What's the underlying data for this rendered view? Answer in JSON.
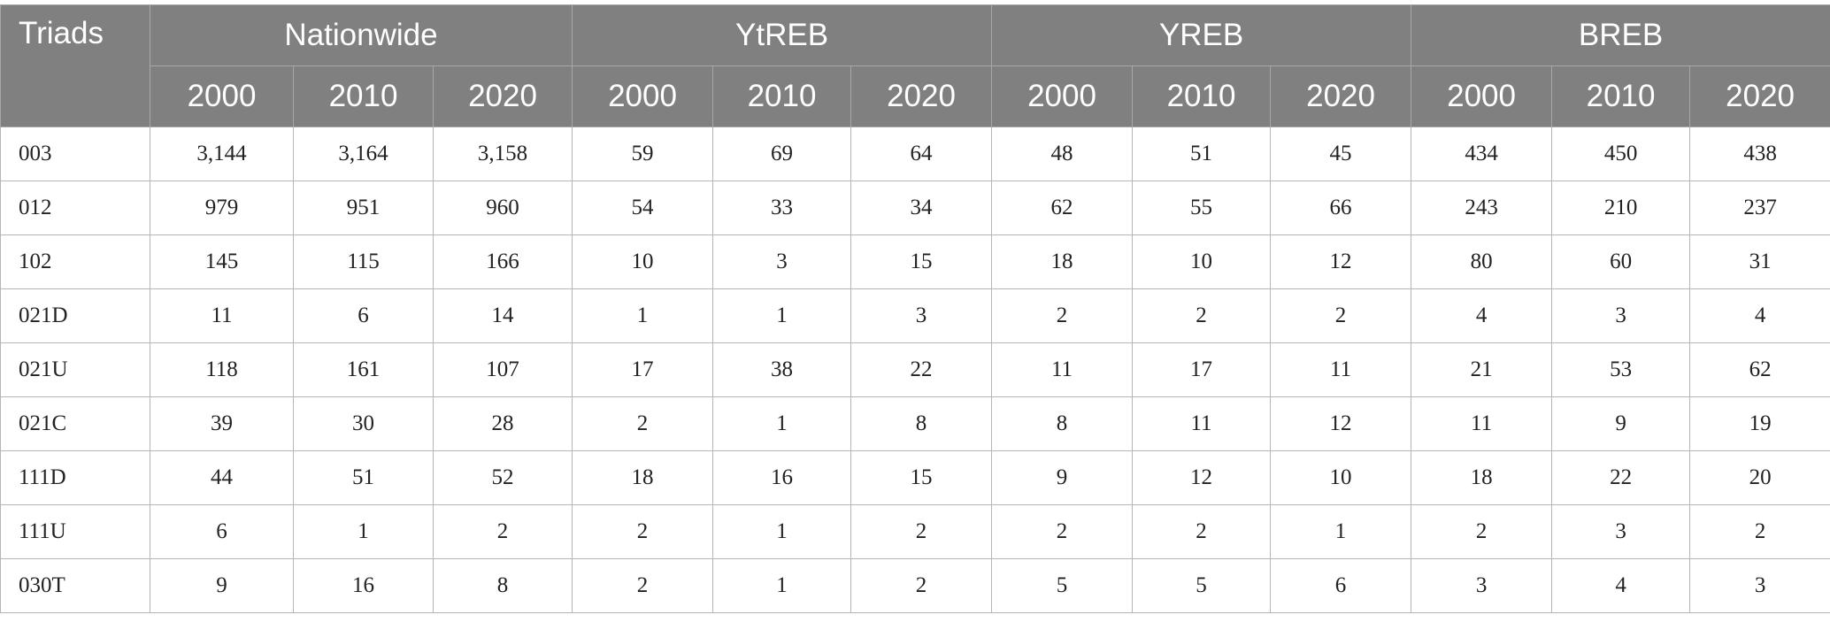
{
  "table": {
    "header": {
      "row_label": "Triads",
      "groups": [
        "Nationwide",
        "YtREB",
        "YREB",
        "BREB"
      ],
      "years": [
        "2000",
        "2010",
        "2020"
      ]
    },
    "rows": [
      {
        "label": "003",
        "values": [
          "3,144",
          "3,164",
          "3,158",
          "59",
          "69",
          "64",
          "48",
          "51",
          "45",
          "434",
          "450",
          "438"
        ]
      },
      {
        "label": "012",
        "values": [
          "979",
          "951",
          "960",
          "54",
          "33",
          "34",
          "62",
          "55",
          "66",
          "243",
          "210",
          "237"
        ]
      },
      {
        "label": "102",
        "values": [
          "145",
          "115",
          "166",
          "10",
          "3",
          "15",
          "18",
          "10",
          "12",
          "80",
          "60",
          "31"
        ]
      },
      {
        "label": "021D",
        "values": [
          "11",
          "6",
          "14",
          "1",
          "1",
          "3",
          "2",
          "2",
          "2",
          "4",
          "3",
          "4"
        ]
      },
      {
        "label": "021U",
        "values": [
          "118",
          "161",
          "107",
          "17",
          "38",
          "22",
          "11",
          "17",
          "11",
          "21",
          "53",
          "62"
        ]
      },
      {
        "label": "021C",
        "values": [
          "39",
          "30",
          "28",
          "2",
          "1",
          "8",
          "8",
          "11",
          "12",
          "11",
          "9",
          "19"
        ]
      },
      {
        "label": "111D",
        "values": [
          "44",
          "51",
          "52",
          "18",
          "16",
          "15",
          "9",
          "12",
          "10",
          "18",
          "22",
          "20"
        ]
      },
      {
        "label": "111U",
        "values": [
          "6",
          "1",
          "2",
          "2",
          "1",
          "2",
          "2",
          "2",
          "1",
          "2",
          "3",
          "2"
        ]
      },
      {
        "label": "030T",
        "values": [
          "9",
          "16",
          "8",
          "2",
          "1",
          "2",
          "5",
          "5",
          "6",
          "3",
          "4",
          "3"
        ]
      }
    ],
    "colors": {
      "header_bg": "#808080",
      "header_text": "#ffffff",
      "grid": "#b5b5b5"
    }
  }
}
